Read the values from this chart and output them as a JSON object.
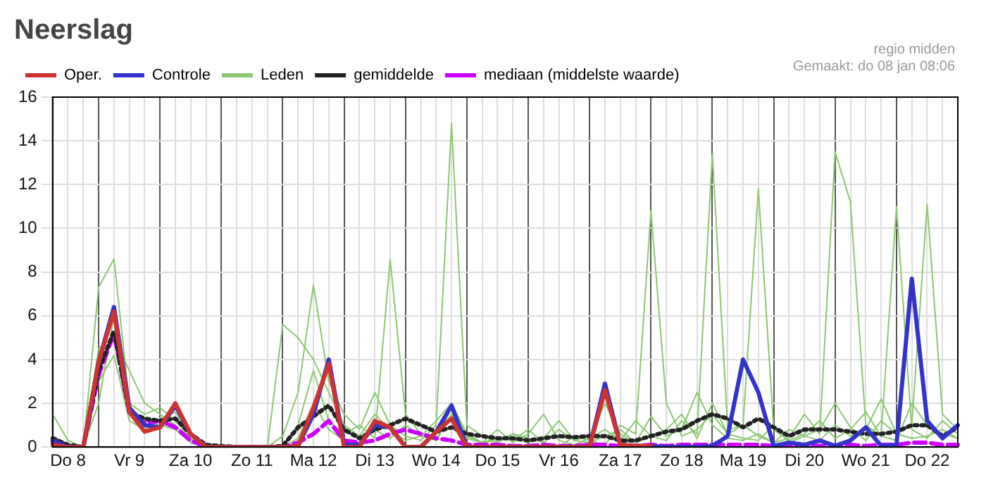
{
  "chart_data": {
    "type": "line",
    "title": "Neerslag",
    "annotations": [
      "regio midden",
      "Gemaakt: do 08 jan 08:06"
    ],
    "categories": [
      null,
      "Do 8",
      null,
      null,
      null,
      "Vr 9",
      null,
      null,
      null,
      "Za 10",
      null,
      null,
      null,
      "Zo 11",
      null,
      null,
      null,
      "Ma 12",
      null,
      null,
      null,
      "Di 13",
      null,
      null,
      null,
      "Wo 14",
      null,
      null,
      null,
      "Do 15",
      null,
      null,
      null,
      "Vr 16",
      null,
      null,
      null,
      "Za 17",
      null,
      null,
      null,
      "Zo 18",
      null,
      null,
      null,
      "Ma 19",
      null,
      null,
      null,
      "Di 20",
      null,
      null,
      null,
      "Wo 21",
      null,
      null,
      null,
      "Do 22",
      null,
      null
    ],
    "series": [
      {
        "name": "Oper.",
        "color": "#cc3333",
        "values": [
          0.1,
          0,
          0,
          3.9,
          6.2,
          1.6,
          0.7,
          0.9,
          2.0,
          0.6,
          0,
          0,
          0,
          0,
          0,
          0,
          0.05,
          1.8,
          3.8,
          0,
          0,
          1.2,
          0.9,
          0,
          0,
          0.7,
          1.3,
          0,
          0,
          0,
          0,
          0,
          0,
          0,
          0,
          0,
          2.6,
          0.1,
          0.05,
          0.05,
          null,
          null,
          null,
          null,
          null,
          null,
          null,
          null,
          null,
          null,
          null,
          null,
          null,
          null,
          null,
          null,
          null,
          null,
          null,
          null
        ]
      },
      {
        "name": "Controle",
        "color": "#3333cc",
        "values": [
          0.3,
          0,
          0,
          3.9,
          6.4,
          1.8,
          1.0,
          0.9,
          1.9,
          0.6,
          0,
          0,
          0,
          0,
          0,
          0,
          0.05,
          1.5,
          4.0,
          0.1,
          0.1,
          1.0,
          0.9,
          0,
          0,
          0.7,
          1.9,
          0,
          0,
          0,
          0,
          0,
          0,
          0,
          0,
          0,
          2.9,
          0.1,
          0.05,
          0.05,
          0,
          0,
          0,
          0.05,
          0.5,
          4.0,
          2.5,
          0.05,
          0.2,
          0.1,
          0.3,
          0.05,
          0.3,
          0.9,
          0.05,
          0.1,
          7.7,
          1.2,
          0.4,
          1.0
        ]
      },
      {
        "name": "Leden",
        "color": "#8cc872",
        "values": [
          1.5,
          0.3,
          0,
          7.3,
          8.6,
          2.0,
          1.5,
          1.8,
          1.2,
          0.4,
          0,
          0,
          0,
          0,
          0,
          5.6,
          5.0,
          4.0,
          2.5,
          1.0,
          0.5,
          1.5,
          0.8,
          0.3,
          0.5,
          1.2,
          2.0,
          0.6,
          0.2,
          0.4,
          0.3,
          0.8,
          0.2,
          0,
          0.5,
          0.3,
          0.1,
          1.0,
          0.6,
          10.8,
          2.0,
          0.5,
          0.8,
          1.5,
          0.6,
          0.4,
          0.3,
          1.0,
          0.2,
          0.5,
          0.8,
          2.0,
          0.9,
          0.3,
          1.2,
          0.6,
          0.4,
          0.5,
          0.8,
          0.4
        ]
      },
      {
        "color": "#8cc872",
        "values": [
          0.2,
          0,
          0,
          4.5,
          5.0,
          3.5,
          2.0,
          1.5,
          1.0,
          0.3,
          0,
          0,
          0,
          0,
          0,
          0.5,
          2.5,
          7.4,
          3.0,
          1.5,
          0.8,
          2.5,
          1.0,
          0.5,
          0.3,
          1.0,
          14.8,
          1.0,
          0.5,
          0.2,
          0.6,
          0.4,
          0.2,
          0.8,
          0.3,
          0.5,
          2.0,
          0.6,
          0.2,
          0.5,
          0.3,
          1.2,
          0.6,
          13.4,
          0.8,
          1.0,
          0.5,
          0.2,
          0.4,
          1.5,
          0.6,
          13.5,
          11.2,
          1.0,
          0.5,
          0.3,
          2.0,
          1.0,
          0.6,
          0.4
        ]
      },
      {
        "color": "#8cc872",
        "values": [
          0.5,
          0.1,
          0,
          3.0,
          4.2,
          1.2,
          0.8,
          1.3,
          1.6,
          0.5,
          0.1,
          0,
          0,
          0,
          0,
          0,
          1.0,
          3.5,
          1.2,
          0.6,
          1.0,
          0.4,
          8.6,
          1.5,
          0.6,
          0.3,
          1.8,
          0.5,
          0.2,
          0.8,
          0.2,
          0.6,
          1.5,
          0.3,
          0.1,
          0.4,
          0.8,
          0.3,
          1.2,
          0.5,
          0.8,
          1.5,
          0.4,
          2.0,
          0.6,
          1.0,
          11.8,
          0.8,
          0.3,
          0.6,
          1.2,
          0.4,
          0.8,
          1.6,
          0.5,
          11.0,
          0.8,
          0.4,
          1.2,
          0.6
        ]
      },
      {
        "color": "#8cc872",
        "values": [
          0.1,
          0,
          0,
          2.0,
          6.0,
          1.5,
          1.2,
          1.0,
          0.8,
          0.2,
          0,
          0,
          0,
          0,
          0,
          0,
          0.4,
          2.0,
          0.8,
          0.3,
          0.2,
          0.8,
          0.4,
          1.0,
          0.5,
          0.3,
          1.5,
          0.4,
          0.2,
          0.3,
          0.6,
          0.2,
          0.4,
          1.2,
          0.3,
          0.2,
          0.5,
          0.8,
          0.2,
          1.4,
          0.5,
          0.8,
          2.5,
          1.0,
          0.4,
          0.3,
          0.6,
          0.2,
          0.8,
          0.5,
          0.3,
          1.0,
          0.5,
          0.8,
          2.2,
          0.6,
          1.0,
          11.1,
          1.5,
          0.8
        ]
      },
      {
        "name": "gemiddelde",
        "color": "#222222",
        "line_style": "dotted",
        "values": [
          0.4,
          0.1,
          0,
          3.5,
          5.3,
          1.6,
          1.3,
          1.2,
          1.3,
          0.6,
          0.1,
          0.05,
          0,
          0,
          0,
          0.05,
          0.9,
          1.4,
          1.9,
          0.8,
          0.4,
          0.8,
          1.0,
          1.3,
          1.0,
          0.7,
          0.9,
          0.6,
          0.5,
          0.4,
          0.4,
          0.3,
          0.4,
          0.5,
          0.45,
          0.5,
          0.5,
          0.3,
          0.3,
          0.5,
          0.7,
          0.8,
          1.2,
          1.5,
          1.3,
          0.9,
          1.3,
          0.9,
          0.5,
          0.8,
          0.8,
          0.8,
          0.7,
          0.6,
          0.6,
          0.7,
          1.0,
          1.0,
          0.5,
          0.9
        ]
      },
      {
        "name": "mediaan (middelste waarde)",
        "color": "#cc00ff",
        "line_style": "dashed",
        "values": [
          0.2,
          0.05,
          0,
          3.3,
          5.2,
          1.6,
          1.1,
          1.2,
          0.9,
          0.3,
          0,
          0,
          0,
          0,
          0,
          0,
          0.2,
          0.6,
          1.2,
          0.3,
          0.2,
          0.3,
          0.6,
          0.8,
          0.6,
          0.4,
          0.3,
          0.1,
          0.1,
          0.1,
          0.05,
          0.05,
          0.1,
          0.05,
          0.05,
          0.1,
          0.1,
          0.05,
          0.05,
          0.1,
          0.05,
          0.1,
          0.1,
          0.1,
          0.1,
          0.1,
          0.1,
          0.05,
          0.05,
          0.1,
          0.05,
          0.05,
          0.1,
          0.05,
          0.1,
          0.1,
          0.2,
          0.2,
          0.1,
          0.1
        ]
      }
    ],
    "ylim": [
      0,
      16
    ],
    "yticks": [
      0,
      2,
      4,
      6,
      8,
      10,
      12,
      14,
      16
    ],
    "grid": true,
    "legend": "top",
    "marker": "none",
    "line_style": "solid"
  }
}
